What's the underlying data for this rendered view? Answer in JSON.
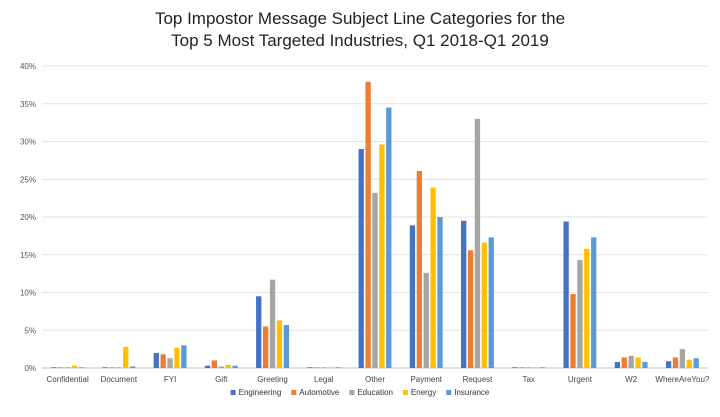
{
  "chart_data": {
    "type": "bar",
    "title_line1": "Top Impostor Message Subject Line Categories for the",
    "title_line2": "Top 5 Most Targeted Industries, Q1 2018-Q1 2019",
    "ylim": [
      0,
      40
    ],
    "yticks": [
      "0%",
      "5%",
      "10%",
      "15%",
      "20%",
      "25%",
      "30%",
      "35%",
      "40%"
    ],
    "ytick_values": [
      0,
      5,
      10,
      15,
      20,
      25,
      30,
      35,
      40
    ],
    "grid": true,
    "legend_position": "bottom-center",
    "categories": [
      "Confidential",
      "Document",
      "FYI",
      "Gift",
      "Greeting",
      "Legal",
      "Other",
      "Payment",
      "Request",
      "Tax",
      "Urgent",
      "W2",
      "WhereAreYou?"
    ],
    "series": [
      {
        "name": "Engineering",
        "color": "#4472c4",
        "values": [
          0.1,
          0.1,
          2.0,
          0.3,
          9.5,
          0.1,
          29.0,
          18.9,
          19.5,
          0.1,
          19.4,
          0.8,
          0.9
        ]
      },
      {
        "name": "Automotive",
        "color": "#ed7d31",
        "values": [
          0.1,
          0.1,
          1.8,
          1.0,
          5.5,
          0.1,
          37.9,
          26.1,
          15.6,
          0.1,
          9.8,
          1.4,
          1.4
        ]
      },
      {
        "name": "Education",
        "color": "#a5a5a5",
        "values": [
          0.1,
          0.1,
          1.3,
          0.2,
          11.7,
          0.1,
          23.2,
          12.6,
          33.0,
          0.1,
          14.3,
          1.6,
          2.5
        ]
      },
      {
        "name": "Energy",
        "color": "#ffc000",
        "values": [
          0.3,
          2.8,
          2.7,
          0.4,
          6.3,
          0.1,
          29.6,
          23.9,
          16.6,
          0.1,
          15.8,
          1.4,
          1.1
        ]
      },
      {
        "name": "Insurance",
        "color": "#5b9bd5",
        "values": [
          0.1,
          0.2,
          3.0,
          0.3,
          5.7,
          0.1,
          34.5,
          20.0,
          17.3,
          0.1,
          17.3,
          0.8,
          1.3
        ]
      }
    ]
  }
}
